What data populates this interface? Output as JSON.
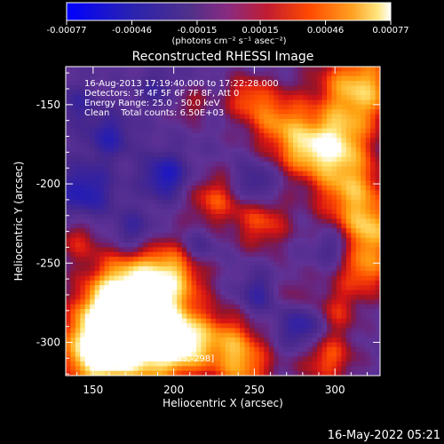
{
  "colorbar": {
    "ticks": [
      -0.00077,
      -0.00046,
      -0.00015,
      0.00015,
      0.00046,
      0.00077
    ],
    "tick_labels": [
      "-0.00077",
      "-0.00046",
      "-0.00015",
      "0.00015",
      "0.00046",
      "0.00077"
    ],
    "units_label": "(photons cm⁻² s⁻¹ asec⁻²)",
    "range": [
      -0.00077,
      0.00077
    ],
    "colors": [
      "#0000ff",
      "#2020a0",
      "#503080",
      "#8a2a80",
      "#c02020",
      "#ff4000",
      "#ff9000",
      "#ffe070",
      "#ffffff"
    ]
  },
  "chart_data": {
    "type": "heatmap",
    "title": "Reconstructed RHESSI Image",
    "xlabel": "Heliocentric X (arcsec)",
    "ylabel": "Heliocentric Y (arcsec)",
    "xlim": [
      133,
      328
    ],
    "ylim": [
      -321,
      -126
    ],
    "xticks": [
      150,
      200,
      250,
      300
    ],
    "yticks": [
      -150,
      -200,
      -250,
      -300
    ],
    "annotations": [
      "16-Aug-2013 17:19:40.000 to 17:22:28.000",
      "Detectors: 3F 4F 5F 6F 7F 8F, Att 0",
      "Energy Range: 25.0 - 50.0 keV",
      "Clean    Total counts: 6.50E+03"
    ],
    "peak_label": "Position of Peak = [185,-298]",
    "peak": [
      185,
      -298
    ]
  },
  "footer": {
    "timestamp": "16-May-2022 05:21"
  }
}
